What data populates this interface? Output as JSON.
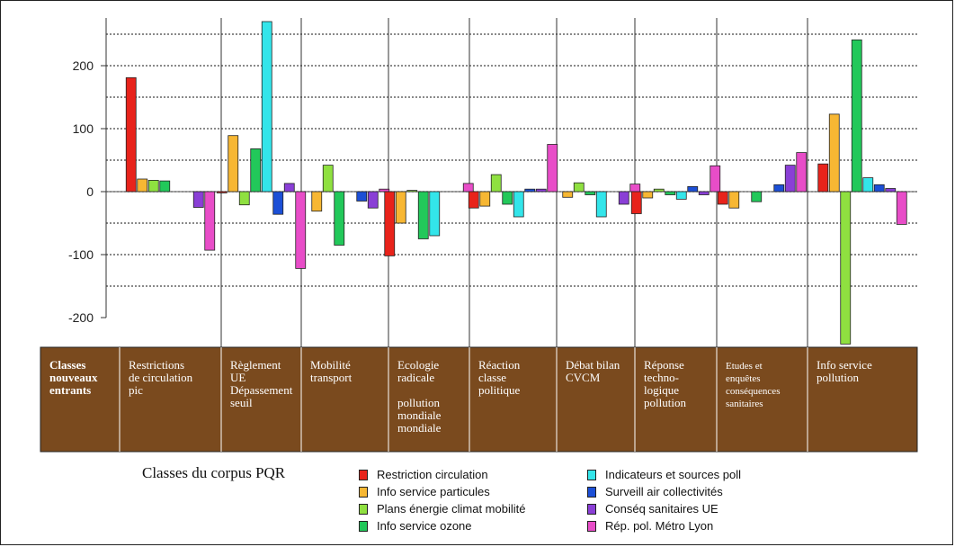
{
  "chart_data": {
    "type": "bar",
    "ylim": [
      -240,
      260
    ],
    "yticks": [
      -200,
      -100,
      0,
      100,
      200
    ],
    "grid": true,
    "categories": [
      {
        "label": "Classes nouveaux entrants",
        "lines": [
          "Classes",
          "nouveaux",
          "entrants"
        ],
        "bold": true
      },
      {
        "label": "Restrictions de circulation pic",
        "lines": [
          "Restrictions",
          "de circulation",
          "pic"
        ]
      },
      {
        "label": "Règlement UE Dépassement seuil",
        "lines": [
          "Règlement",
          "UE",
          "Dépassement",
          "seuil"
        ]
      },
      {
        "label": "Mobilité transport",
        "lines": [
          "Mobilité",
          "transport"
        ]
      },
      {
        "label": "Ecologie radicale pollution mondiale mondiale",
        "lines": [
          "Ecologie",
          "radicale",
          "",
          "pollution",
          "mondiale",
          "mondiale"
        ]
      },
      {
        "label": "Réaction classe politique",
        "lines": [
          "Réaction",
          "classe",
          "politique"
        ]
      },
      {
        "label": "Débat bilan CVCM",
        "lines": [
          "Débat bilan",
          "CVCM"
        ]
      },
      {
        "label": "Réponse techno-logique pollution",
        "lines": [
          "Réponse",
          "techno-",
          "logique",
          "pollution"
        ]
      },
      {
        "label": "Etudes et enquêtes conséquences sanitaires",
        "lines": [
          "Etudes et",
          "enquêtes",
          "conséquences",
          "sanitaires"
        ],
        "small": true
      },
      {
        "label": "Info service pollution",
        "lines": [
          "Info service",
          "pollution"
        ]
      }
    ],
    "legend_title": "Classes du corpus PQR",
    "series": [
      {
        "name": "Restriction circulation",
        "color": "#e8231b",
        "values": [
          null,
          181,
          -2,
          0,
          -102,
          -26,
          0,
          -35,
          -20,
          44
        ]
      },
      {
        "name": "Info service particules",
        "color": "#f7b733",
        "values": [
          null,
          20,
          89,
          -31,
          -50,
          -23,
          -9,
          -10,
          -26,
          123
        ]
      },
      {
        "name": "Plans énergie climat mobilité",
        "color": "#8fe040",
        "values": [
          null,
          18,
          -21,
          42,
          2,
          27,
          14,
          4,
          0,
          -242
        ]
      },
      {
        "name": "Info service ozone",
        "color": "#22c85a",
        "values": [
          null,
          17,
          68,
          -85,
          -75,
          -20,
          -5,
          -5,
          -16,
          241
        ]
      },
      {
        "name": "Indicateurs et sources poll",
        "color": "#33e5ea",
        "values": [
          null,
          0,
          270,
          0,
          -70,
          -40,
          -40,
          -12,
          0,
          22
        ]
      },
      {
        "name": "Surveill air collectivités",
        "color": "#1c4fd6",
        "values": [
          null,
          0,
          -36,
          -15,
          0,
          4,
          0,
          8,
          11,
          11
        ]
      },
      {
        "name": "Conséq sanitaires UE",
        "color": "#8a3fd6",
        "values": [
          null,
          -25,
          13,
          -26,
          0,
          4,
          -20,
          -5,
          42,
          5
        ]
      },
      {
        "name": "Rép. pol. Métro Lyon",
        "color": "#e84dc8",
        "values": [
          null,
          -93,
          -122,
          4,
          13,
          75,
          12,
          41,
          62,
          -52
        ]
      }
    ]
  }
}
